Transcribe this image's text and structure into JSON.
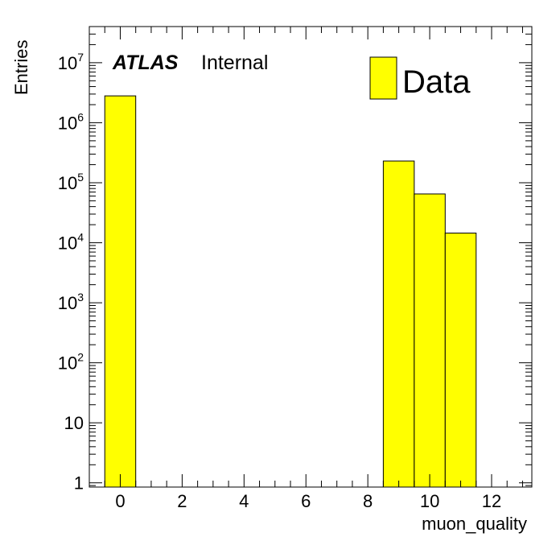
{
  "chart_data": {
    "type": "bar",
    "histogram": true,
    "bin_width": 1,
    "xlabel": "muon_quality",
    "ylabel": "Entries",
    "xlim": [
      -1,
      13.3
    ],
    "ylim": [
      0.85,
      40000000
    ],
    "yscale": "log",
    "x_ticks": [
      "0",
      "2",
      "4",
      "6",
      "8",
      "10",
      "12"
    ],
    "y_ticks": [
      {
        "value": 1,
        "base": "1",
        "exp": ""
      },
      {
        "value": 10,
        "base": "10",
        "exp": ""
      },
      {
        "value": 100,
        "base": "10",
        "exp": "2"
      },
      {
        "value": 1000,
        "base": "10",
        "exp": "3"
      },
      {
        "value": 10000,
        "base": "10",
        "exp": "4"
      },
      {
        "value": 100000,
        "base": "10",
        "exp": "5"
      },
      {
        "value": 1000000,
        "base": "10",
        "exp": "6"
      },
      {
        "value": 10000000,
        "base": "10",
        "exp": "7"
      }
    ],
    "series": [
      {
        "name": "Data",
        "color": "#ffff00",
        "points": [
          {
            "x": 0,
            "y": 2800000
          },
          {
            "x": 9,
            "y": 230000
          },
          {
            "x": 10,
            "y": 65000
          },
          {
            "x": 11,
            "y": 14500
          }
        ]
      }
    ],
    "label": {
      "experiment": "ATLAS",
      "status": "Internal"
    },
    "legend": {
      "entry": "Data",
      "placement": "top-right"
    }
  }
}
